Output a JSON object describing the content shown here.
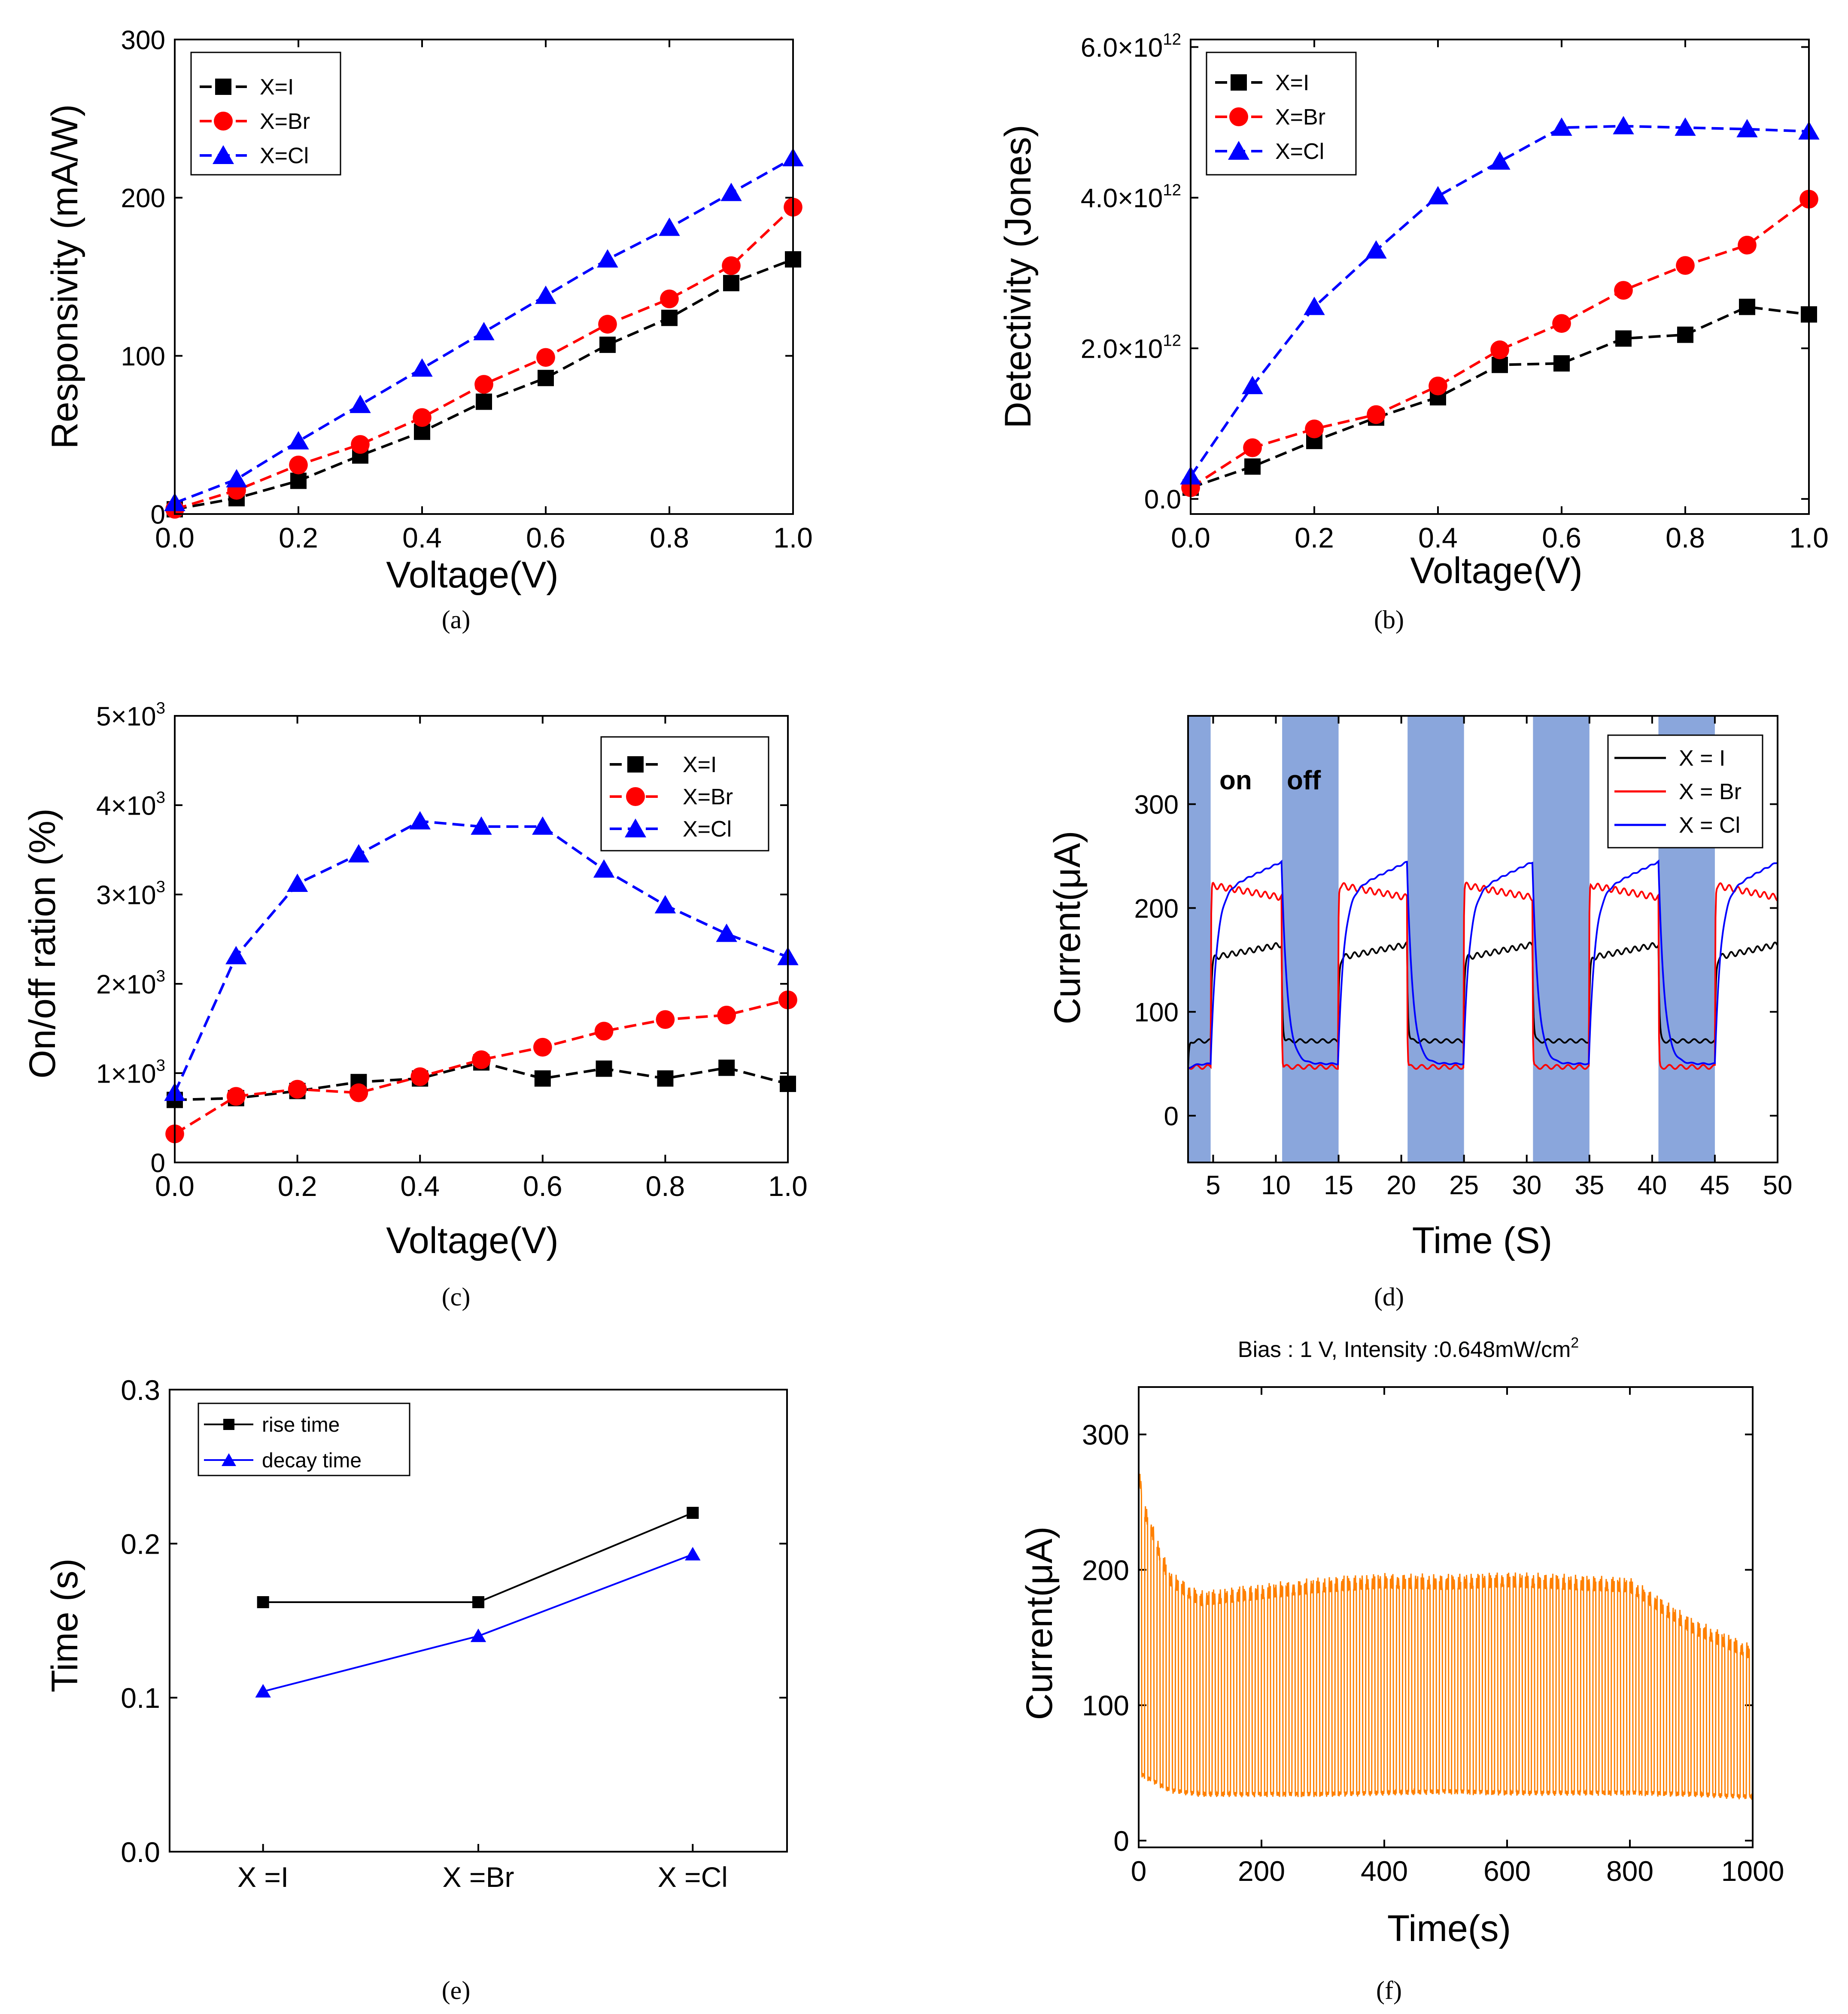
{
  "panel_labels": {
    "a": "(a)",
    "b": "(b)",
    "c": "(c)",
    "d": "(d)",
    "e": "(e)",
    "f": "(f)"
  },
  "colors": {
    "black": "#000000",
    "red": "#ff0000",
    "blue": "#0000ff",
    "orange": "#ff8000",
    "shade": "#8aa6dc"
  },
  "chart_data": [
    {
      "id": "a",
      "type": "line",
      "xlabel": "Voltage(V)",
      "ylabel": "Responsivity (mA/W)",
      "xlim": [
        0,
        1.0
      ],
      "ylim": [
        0,
        300
      ],
      "x_ticks": [
        "0.0",
        "0.2",
        "0.4",
        "0.6",
        "0.8",
        "1.0"
      ],
      "y_ticks": [
        "0",
        "100",
        "200",
        "300"
      ],
      "legend_position": "top-left",
      "x": [
        0,
        0.1,
        0.2,
        0.3,
        0.4,
        0.5,
        0.6,
        0.7,
        0.8,
        0.9,
        1.0
      ],
      "series": [
        {
          "name": "X=I",
          "color": "#000000",
          "marker": "square",
          "values": [
            3,
            10,
            21,
            37,
            52,
            71,
            86,
            107,
            124,
            146,
            161
          ]
        },
        {
          "name": "X=Br",
          "color": "#ff0000",
          "marker": "circle",
          "values": [
            3,
            15,
            31,
            44,
            61,
            82,
            99,
            120,
            136,
            157,
            194
          ]
        },
        {
          "name": "X=Cl",
          "color": "#0000ff",
          "marker": "triangle",
          "values": [
            7,
            22,
            46,
            69,
            92,
            115,
            138,
            161,
            181,
            203,
            225
          ]
        }
      ]
    },
    {
      "id": "b",
      "type": "line",
      "xlabel": "Voltage(V)",
      "ylabel": "Detectivity (Jones)",
      "xlim": [
        0,
        1.0
      ],
      "ylim": [
        -0.2,
        6.1
      ],
      "y_unit": "×10^12",
      "x_ticks": [
        "0.0",
        "0.2",
        "0.4",
        "0.6",
        "0.8",
        "1.0"
      ],
      "y_ticks": [
        {
          "v": 0,
          "text": "0.0",
          "exp": ""
        },
        {
          "v": 2,
          "text": "2.0×10",
          "exp": "12"
        },
        {
          "v": 4,
          "text": "4.0×10",
          "exp": "12"
        },
        {
          "v": 6,
          "text": "6.0×10",
          "exp": "12"
        }
      ],
      "legend_position": "top-left",
      "x": [
        0,
        0.1,
        0.2,
        0.3,
        0.4,
        0.5,
        0.6,
        0.7,
        0.8,
        0.9,
        1.0
      ],
      "series": [
        {
          "name": "X=I",
          "color": "#000000",
          "marker": "square",
          "values": [
            0.15,
            0.43,
            0.77,
            1.08,
            1.35,
            1.78,
            1.8,
            2.13,
            2.18,
            2.55,
            2.45
          ]
        },
        {
          "name": "X=Br",
          "color": "#ff0000",
          "marker": "circle",
          "values": [
            0.15,
            0.68,
            0.93,
            1.12,
            1.5,
            1.98,
            2.33,
            2.77,
            3.1,
            3.37,
            3.98
          ]
        },
        {
          "name": "X=Cl",
          "color": "#0000ff",
          "marker": "triangle",
          "values": [
            0.3,
            1.5,
            2.55,
            3.3,
            4.02,
            4.48,
            4.93,
            4.95,
            4.93,
            4.91,
            4.88
          ]
        }
      ]
    },
    {
      "id": "c",
      "type": "line",
      "xlabel": "Voltage(V)",
      "ylabel": "On/off ration (%)",
      "xlim": [
        0,
        1.0
      ],
      "ylim": [
        0,
        5000
      ],
      "x_ticks": [
        "0.0",
        "0.2",
        "0.4",
        "0.6",
        "0.8",
        "1.0"
      ],
      "y_ticks": [
        {
          "v": 0,
          "text": "0",
          "exp": ""
        },
        {
          "v": 1000,
          "text": "1×10",
          "exp": "3"
        },
        {
          "v": 2000,
          "text": "2×10",
          "exp": "3"
        },
        {
          "v": 3000,
          "text": "3×10",
          "exp": "3"
        },
        {
          "v": 4000,
          "text": "4×10",
          "exp": "3"
        },
        {
          "v": 5000,
          "text": "5×10",
          "exp": "3"
        }
      ],
      "legend_position": "top-right",
      "x": [
        0,
        0.1,
        0.2,
        0.3,
        0.4,
        0.5,
        0.6,
        0.7,
        0.8,
        0.9,
        1.0
      ],
      "series": [
        {
          "name": "X=I",
          "color": "#000000",
          "marker": "square",
          "values": [
            700,
            720,
            800,
            900,
            940,
            1120,
            940,
            1050,
            940,
            1060,
            880
          ]
        },
        {
          "name": "X=Br",
          "color": "#ff0000",
          "marker": "circle",
          "values": [
            320,
            740,
            820,
            780,
            960,
            1150,
            1290,
            1470,
            1600,
            1650,
            1820
          ]
        },
        {
          "name": "X=Cl",
          "color": "#0000ff",
          "marker": "triangle",
          "values": [
            780,
            2310,
            3120,
            3450,
            3820,
            3760,
            3760,
            3280,
            2880,
            2560,
            2300
          ]
        }
      ]
    },
    {
      "id": "d",
      "type": "line",
      "xlabel": "Time (S)",
      "ylabel": "Current(μA)",
      "xlim": [
        3,
        50
      ],
      "ylim": [
        -45,
        385
      ],
      "x_ticks": [
        "5",
        "10",
        "15",
        "20",
        "25",
        "30",
        "35",
        "40",
        "45",
        "50"
      ],
      "y_ticks": [
        "0",
        "100",
        "200",
        "300"
      ],
      "legend_position": "top-right",
      "annotations": [
        "on",
        "off"
      ],
      "shaded_intervals": [
        [
          3,
          4.8
        ],
        [
          10.5,
          15
        ],
        [
          20.5,
          25
        ],
        [
          30.5,
          35
        ],
        [
          40.5,
          45
        ]
      ],
      "series": [
        {
          "name": "X = I",
          "color": "#000000",
          "description": "square wave ~150-165 μA on, ~50-75 μA off"
        },
        {
          "name": "X = Br",
          "color": "#ff0000",
          "description": "square wave ~210-225 μA on, ~45-50 μA off"
        },
        {
          "name": "X = Cl",
          "color": "#0000ff",
          "description": "slow rise to ~245 μA on, slow decay to ~50 μA off"
        }
      ]
    },
    {
      "id": "e",
      "type": "line",
      "xlabel": "",
      "ylabel": "Time (s)",
      "categories": [
        "X =I",
        "X =Br",
        "X =Cl"
      ],
      "ylim": [
        0,
        0.3
      ],
      "y_ticks": [
        "0.0",
        "0.1",
        "0.2",
        "0.3"
      ],
      "legend_position": "top-left",
      "series": [
        {
          "name": "rise time",
          "color": "#000000",
          "marker": "square",
          "values": [
            0.162,
            0.162,
            0.22
          ]
        },
        {
          "name": "decay time",
          "color": "#0000ff",
          "marker": "triangle",
          "values": [
            0.104,
            0.14,
            0.193
          ]
        }
      ]
    },
    {
      "id": "f",
      "type": "line",
      "title": "Bias : 1 V, Intensity :0.648mW/cm",
      "title_sup": "2",
      "xlabel": "Time(s)",
      "ylabel": "Current(μA)",
      "xlim": [
        0,
        1000
      ],
      "ylim": [
        -5,
        335
      ],
      "x_ticks": [
        "0",
        "200",
        "400",
        "600",
        "800",
        "1000"
      ],
      "y_ticks": [
        "0",
        "100",
        "200",
        "300"
      ],
      "series": [
        {
          "name": "current",
          "color": "#ff8000",
          "cycles": 100,
          "envelope_x": [
            0,
            10,
            50,
            100,
            200,
            300,
            400,
            500,
            600,
            700,
            800,
            900,
            1000
          ],
          "envelope_max": [
            280,
            250,
            200,
            185,
            190,
            195,
            198,
            197,
            199,
            197,
            195,
            165,
            145
          ],
          "envelope_min": [
            48,
            45,
            35,
            32,
            32,
            32,
            33,
            34,
            33,
            33,
            33,
            32,
            30
          ]
        }
      ]
    }
  ]
}
